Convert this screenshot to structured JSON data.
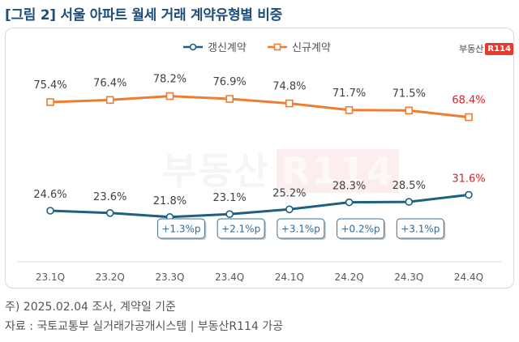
{
  "title": "[그림 2] 서울 아파트 월세 거래 계약유형별 비중",
  "logo": {
    "text": "부동산",
    "mark": "R114"
  },
  "footnotes": [
    "주) 2025.02.04 조사, 계약일 기준",
    "자료 : 국토교통부 실거래가공개시스템 | 부동산R114 가공"
  ],
  "colors": {
    "renewal": "#1f5f7f",
    "new": "#ee7d31",
    "highlight": "#e02020",
    "label": "#404040",
    "badge_border": "#3c6f8f",
    "badge_text": "#2f6a9a"
  },
  "chart_data": {
    "type": "line",
    "title": "",
    "xlabel": "",
    "ylabel": "",
    "categories": [
      "23.1Q",
      "23.2Q",
      "23.3Q",
      "23.4Q",
      "24.1Q",
      "24.2Q",
      "24.3Q",
      "24.4Q"
    ],
    "series": [
      {
        "name": "신규계약",
        "values": [
          75.4,
          76.4,
          78.2,
          76.9,
          74.8,
          71.7,
          71.5,
          68.4
        ]
      },
      {
        "name": "갱신계약",
        "values": [
          24.6,
          23.6,
          21.8,
          23.1,
          25.2,
          28.3,
          28.5,
          31.6
        ]
      }
    ],
    "data_labels": {
      "new": [
        "75.4%",
        "76.4%",
        "78.2%",
        "76.9%",
        "74.8%",
        "71.7%",
        "71.5%",
        "68.4%"
      ],
      "renewal": [
        "24.6%",
        "23.6%",
        "21.8%",
        "23.1%",
        "25.2%",
        "28.3%",
        "28.5%",
        "31.6%"
      ]
    },
    "annotations": [
      {
        "category": "23.3Q",
        "text": "+1.3%p"
      },
      {
        "category": "23.4Q",
        "text": "+2.1%p"
      },
      {
        "category": "24.1Q",
        "text": "+3.1%p"
      },
      {
        "category": "24.2Q",
        "text": "+0.2%p"
      },
      {
        "category": "24.3Q",
        "text": "+3.1%p"
      }
    ],
    "legend_position": "top-center",
    "grid": false
  }
}
